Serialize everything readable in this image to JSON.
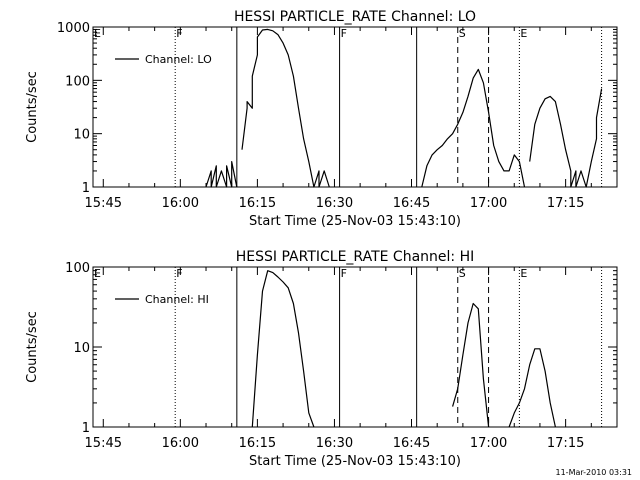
{
  "footer_stamp": "11-Mar-2010 03:31",
  "colors": {
    "background": "#ffffff",
    "ink": "#000000"
  },
  "chart_data": [
    {
      "type": "line",
      "title": "HESSI PARTICLE_RATE Channel: LO",
      "xlabel": "Start Time (25-Nov-03 15:43:10)",
      "ylabel": "Counts/sec",
      "y_scale": "log",
      "ylim": [
        1,
        1000
      ],
      "y_ticks": [
        1,
        10,
        100,
        1000
      ],
      "y_tick_labels": [
        "1",
        "10",
        "100",
        "1000"
      ],
      "x_ticks": [
        "15:45",
        "16:00",
        "16:15",
        "16:30",
        "16:45",
        "17:00",
        "17:15"
      ],
      "xlim": [
        "15:43",
        "17:25"
      ],
      "legend": {
        "label": "Channel: LO",
        "position": "top-left"
      },
      "grid": false,
      "event_markers": [
        {
          "time": "15:59",
          "style": "dotted",
          "label": "F"
        },
        {
          "time": "16:11",
          "style": "solid",
          "label": ""
        },
        {
          "time": "16:31",
          "style": "solid",
          "label": "F"
        },
        {
          "time": "16:46",
          "style": "solid",
          "label": ""
        },
        {
          "time": "16:54",
          "style": "dashed",
          "label": "S"
        },
        {
          "time": "17:00",
          "style": "dashed",
          "label": ""
        },
        {
          "time": "17:06",
          "style": "dotted",
          "label": "E"
        },
        {
          "time": "17:22",
          "style": "dotted",
          "label": ""
        }
      ],
      "series": [
        {
          "name": "Channel: LO",
          "segments": [
            {
              "x": [
                "16:05",
                "16:06",
                "16:06",
                "16:07",
                "16:07",
                "16:08",
                "16:09",
                "16:09",
                "16:10",
                "16:10",
                "16:11"
              ],
              "y": [
                1,
                2,
                1,
                2.5,
                1,
                2,
                1,
                2.5,
                1,
                3,
                1
              ]
            },
            {
              "x": [
                "16:12",
                "16:13",
                "16:13",
                "16:14",
                "16:14",
                "16:15",
                "16:15",
                "16:16",
                "16:17",
                "16:18",
                "16:19",
                "16:20",
                "16:21",
                "16:22",
                "16:23",
                "16:24",
                "16:25",
                "16:26",
                "16:27",
                "16:27",
                "16:28",
                "16:29"
              ],
              "y": [
                5,
                30,
                40,
                30,
                120,
                300,
                650,
                880,
                900,
                850,
                720,
                500,
                300,
                120,
                30,
                8,
                3,
                1,
                2,
                1,
                2,
                1
              ]
            },
            {
              "x": [
                "16:47",
                "16:48",
                "16:49",
                "16:50",
                "16:51",
                "16:52",
                "16:53",
                "16:54",
                "16:55",
                "16:56",
                "16:57",
                "16:58",
                "16:59",
                "17:00",
                "17:01",
                "17:02",
                "17:03",
                "17:04",
                "17:05",
                "17:06",
                "17:07"
              ],
              "y": [
                1,
                2.5,
                4,
                5,
                6,
                8,
                10,
                15,
                25,
                50,
                110,
                160,
                90,
                25,
                6,
                3,
                2,
                2,
                4,
                3,
                1
              ]
            },
            {
              "x": [
                "17:08",
                "17:09",
                "17:10",
                "17:11",
                "17:12",
                "17:13",
                "17:14",
                "17:15",
                "17:16",
                "17:16",
                "17:17",
                "17:17",
                "17:18",
                "17:19",
                "17:20",
                "17:21",
                "17:21",
                "17:22"
              ],
              "y": [
                3,
                15,
                30,
                45,
                50,
                40,
                15,
                5,
                2,
                1,
                2,
                1,
                2,
                1,
                3,
                8,
                20,
                70
              ]
            }
          ]
        }
      ]
    },
    {
      "type": "line",
      "title": "HESSI PARTICLE_RATE Channel: HI",
      "xlabel": "Start Time (25-Nov-03 15:43:10)",
      "ylabel": "Counts/sec",
      "y_scale": "log",
      "ylim": [
        1,
        100
      ],
      "y_ticks": [
        1,
        10,
        100
      ],
      "y_tick_labels": [
        "1",
        "10",
        "100"
      ],
      "x_ticks": [
        "15:45",
        "16:00",
        "16:15",
        "16:30",
        "16:45",
        "17:00",
        "17:15"
      ],
      "xlim": [
        "15:43",
        "17:25"
      ],
      "legend": {
        "label": "Channel: HI",
        "position": "top-left"
      },
      "grid": false,
      "event_markers": [
        {
          "time": "15:59",
          "style": "dotted",
          "label": "F"
        },
        {
          "time": "16:11",
          "style": "solid",
          "label": ""
        },
        {
          "time": "16:31",
          "style": "solid",
          "label": "F"
        },
        {
          "time": "16:46",
          "style": "solid",
          "label": ""
        },
        {
          "time": "16:54",
          "style": "dashed",
          "label": "S"
        },
        {
          "time": "17:00",
          "style": "dashed",
          "label": ""
        },
        {
          "time": "17:06",
          "style": "dotted",
          "label": "E"
        },
        {
          "time": "17:22",
          "style": "dotted",
          "label": ""
        }
      ],
      "series": [
        {
          "name": "Channel: HI",
          "segments": [
            {
              "x": [
                "16:14",
                "16:15",
                "16:16",
                "16:17",
                "16:18",
                "16:19",
                "16:20",
                "16:21",
                "16:22",
                "16:23",
                "16:24",
                "16:25",
                "16:26"
              ],
              "y": [
                1,
                8,
                50,
                90,
                85,
                75,
                65,
                55,
                35,
                15,
                5,
                1.5,
                1
              ]
            },
            {
              "x": [
                "16:53",
                "16:54",
                "16:55",
                "16:56",
                "16:57",
                "16:58",
                "16:59",
                "17:00"
              ],
              "y": [
                1.8,
                3,
                8,
                20,
                35,
                30,
                4,
                1
              ]
            },
            {
              "x": [
                "17:04",
                "17:05",
                "17:06",
                "17:07",
                "17:08",
                "17:09",
                "17:10",
                "17:11",
                "17:12",
                "17:13"
              ],
              "y": [
                1,
                1.5,
                2,
                3,
                6,
                9.5,
                9.5,
                5,
                2,
                1
              ]
            }
          ]
        }
      ]
    }
  ]
}
